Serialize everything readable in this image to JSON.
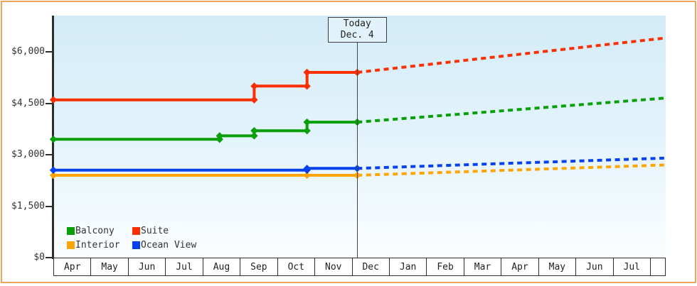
{
  "chart_data": {
    "type": "line",
    "currency": "$",
    "today": {
      "line1": "Today",
      "line2": "Dec. 4",
      "month_index": 8.17
    },
    "y_axis": {
      "ticks": [
        {
          "value": 6000,
          "label": "$6,000"
        },
        {
          "value": 4500,
          "label": "$4,500"
        },
        {
          "value": 3000,
          "label": "$3,000"
        },
        {
          "value": 1500,
          "label": "$1,500"
        },
        {
          "value": 0,
          "label": "$0"
        }
      ],
      "range": [
        0,
        6250
      ],
      "grid": false
    },
    "x_axis": {
      "months": [
        "Apr",
        "May",
        "Jun",
        "Jul",
        "Aug",
        "Sep",
        "Oct",
        "Nov",
        "Dec",
        "Jan",
        "Feb",
        "Mar",
        "Apr",
        "May",
        "Jun",
        "Jul"
      ]
    },
    "legend_position": "bottom-left-inside",
    "series": [
      {
        "name": "Balcony",
        "color": "#089f08",
        "solid": [
          [
            0,
            3450
          ],
          [
            4.47,
            3450
          ],
          [
            4.47,
            3550
          ],
          [
            5.4,
            3550
          ],
          [
            5.4,
            3700
          ],
          [
            6.82,
            3700
          ],
          [
            6.82,
            3950
          ],
          [
            8.17,
            3950
          ]
        ],
        "dotted": [
          [
            8.17,
            3950
          ],
          [
            16.42,
            4650
          ]
        ]
      },
      {
        "name": "Suite",
        "color": "#fb3002",
        "solid": [
          [
            0,
            4600
          ],
          [
            5.4,
            4600
          ],
          [
            5.4,
            5000
          ],
          [
            6.82,
            5000
          ],
          [
            6.82,
            5400
          ],
          [
            8.17,
            5400
          ]
        ],
        "dotted": [
          [
            8.17,
            5400
          ],
          [
            16.42,
            6400
          ]
        ]
      },
      {
        "name": "Interior",
        "color": "#ffa502",
        "solid": [
          [
            0,
            2400
          ],
          [
            6.82,
            2400
          ],
          [
            8.17,
            2400
          ]
        ],
        "dotted": [
          [
            8.17,
            2400
          ],
          [
            16.42,
            2700
          ]
        ]
      },
      {
        "name": "Ocean View",
        "color": "#0542ef",
        "solid": [
          [
            0,
            2550
          ],
          [
            6.82,
            2550
          ],
          [
            6.82,
            2600
          ],
          [
            8.17,
            2600
          ]
        ],
        "dotted": [
          [
            8.17,
            2600
          ],
          [
            16.42,
            2900
          ]
        ]
      }
    ]
  }
}
